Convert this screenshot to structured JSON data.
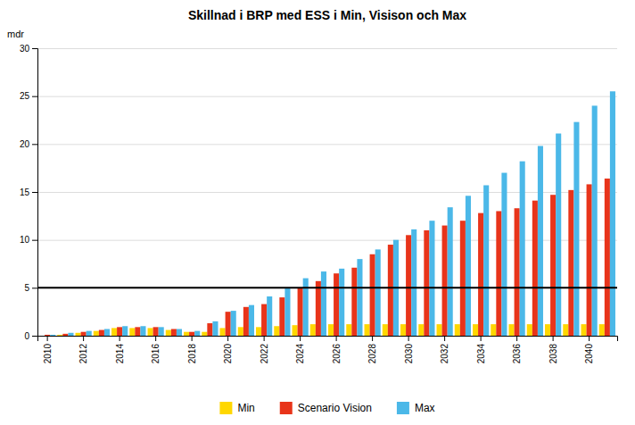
{
  "chart_data": {
    "type": "bar",
    "title": "Skillnad  i BRP med ESS i Min, Visison och Max",
    "ylabel": "mdr",
    "categories": [
      "2010",
      null,
      "2012",
      null,
      "2014",
      null,
      "2016",
      null,
      "2018",
      null,
      "2020",
      null,
      "2022",
      null,
      "2024",
      null,
      "2026",
      null,
      "2028",
      null,
      "2030",
      null,
      "2032",
      null,
      "2034",
      null,
      "2036",
      null,
      "2038",
      null,
      "2040",
      null
    ],
    "series": [
      {
        "name": "Min",
        "color": "#FFD700",
        "values": [
          0.0,
          0.1,
          0.3,
          0.5,
          0.8,
          0.8,
          0.8,
          0.6,
          0.4,
          0.4,
          0.8,
          0.9,
          0.9,
          1.0,
          1.1,
          1.2,
          1.2,
          1.2,
          1.2,
          1.2,
          1.2,
          1.2,
          1.2,
          1.2,
          1.2,
          1.2,
          1.2,
          1.2,
          1.2,
          1.2,
          1.2,
          1.2
        ]
      },
      {
        "name": "Scenario Vision",
        "color": "#E8341A",
        "values": [
          0.1,
          0.2,
          0.4,
          0.6,
          0.9,
          0.9,
          0.9,
          0.7,
          0.4,
          1.3,
          2.5,
          3.0,
          3.3,
          4.0,
          5.0,
          5.7,
          6.5,
          7.1,
          8.5,
          9.5,
          10.5,
          11.0,
          11.5,
          12.0,
          12.8,
          13.0,
          13.3,
          14.1,
          14.7,
          15.2,
          15.8,
          16.4
        ]
      },
      {
        "name": "Max",
        "color": "#4BB8E8",
        "values": [
          0.1,
          0.3,
          0.5,
          0.7,
          1.0,
          1.0,
          0.9,
          0.7,
          0.5,
          1.5,
          2.6,
          3.2,
          4.1,
          5.0,
          6.0,
          6.7,
          7.0,
          8.0,
          9.0,
          10.0,
          11.1,
          12.0,
          13.4,
          14.6,
          15.7,
          17.0,
          18.2,
          19.8,
          21.1,
          22.3,
          24.0,
          25.5
        ]
      }
    ],
    "ylim": [
      0,
      30
    ],
    "yticks": [
      0,
      5,
      10,
      15,
      20,
      25,
      30
    ],
    "reference_line": 5,
    "grid": true,
    "legend": "bottom"
  }
}
